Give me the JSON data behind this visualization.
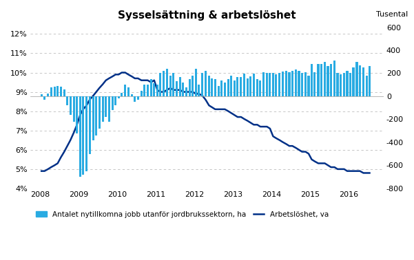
{
  "title": "Sysselsättning & arbetslöshet",
  "right_axis_label": "Tusental",
  "legend_bar": "Antalet nytillkomna jobb utanför jordbrukssektorn, ha",
  "legend_line": "Arbetslöshet, va",
  "bar_color": "#29ABE2",
  "line_color": "#003087",
  "background_color": "#FFFFFF",
  "left_ylim": [
    0.04,
    0.125
  ],
  "left_yticks": [
    0.04,
    0.05,
    0.06,
    0.07,
    0.08,
    0.09,
    0.1,
    0.11,
    0.12
  ],
  "left_yticklabels": [
    "4%",
    "5%",
    "6%",
    "7%",
    "8%",
    "9%",
    "10%",
    "11%",
    "12%"
  ],
  "right_ylim": [
    -800,
    625
  ],
  "right_yticks": [
    -800,
    -600,
    -400,
    -200,
    0,
    200,
    400,
    600
  ],
  "xlim_start": 2007.75,
  "xlim_end": 2016.9,
  "xticks": [
    2008,
    2009,
    2010,
    2011,
    2012,
    2013,
    2014,
    2015,
    2016
  ],
  "bar_dates": [
    2008.04,
    2008.12,
    2008.21,
    2008.29,
    2008.38,
    2008.46,
    2008.54,
    2008.63,
    2008.71,
    2008.79,
    2008.88,
    2008.96,
    2009.04,
    2009.12,
    2009.21,
    2009.29,
    2009.38,
    2009.46,
    2009.54,
    2009.63,
    2009.71,
    2009.79,
    2009.88,
    2009.96,
    2010.04,
    2010.12,
    2010.21,
    2010.29,
    2010.38,
    2010.46,
    2010.54,
    2010.63,
    2010.71,
    2010.79,
    2010.88,
    2010.96,
    2011.04,
    2011.12,
    2011.21,
    2011.29,
    2011.38,
    2011.46,
    2011.54,
    2011.63,
    2011.71,
    2011.79,
    2011.88,
    2011.96,
    2012.04,
    2012.12,
    2012.21,
    2012.29,
    2012.38,
    2012.46,
    2012.54,
    2012.63,
    2012.71,
    2012.79,
    2012.88,
    2012.96,
    2013.04,
    2013.12,
    2013.21,
    2013.29,
    2013.38,
    2013.46,
    2013.54,
    2013.63,
    2013.71,
    2013.79,
    2013.88,
    2013.96,
    2014.04,
    2014.12,
    2014.21,
    2014.29,
    2014.38,
    2014.46,
    2014.54,
    2014.63,
    2014.71,
    2014.79,
    2014.88,
    2014.96,
    2015.04,
    2015.12,
    2015.21,
    2015.29,
    2015.38,
    2015.46,
    2015.54,
    2015.63,
    2015.71,
    2015.79,
    2015.88,
    2015.96,
    2016.04,
    2016.12,
    2016.21,
    2016.29,
    2016.38,
    2016.46,
    2016.54
  ],
  "bar_values": [
    18,
    -30,
    25,
    75,
    85,
    90,
    85,
    60,
    -75,
    -160,
    -220,
    -320,
    -700,
    -680,
    -650,
    -500,
    -380,
    -340,
    -280,
    -220,
    -180,
    -220,
    -120,
    -80,
    -20,
    30,
    100,
    80,
    20,
    -50,
    -30,
    50,
    100,
    100,
    150,
    115,
    100,
    200,
    220,
    240,
    180,
    200,
    130,
    170,
    120,
    80,
    150,
    180,
    240,
    100,
    200,
    220,
    180,
    155,
    150,
    90,
    140,
    120,
    150,
    180,
    140,
    170,
    165,
    195,
    155,
    175,
    195,
    150,
    140,
    210,
    200,
    200,
    200,
    190,
    200,
    215,
    220,
    210,
    220,
    230,
    220,
    200,
    210,
    180,
    280,
    210,
    280,
    280,
    300,
    260,
    280,
    310,
    200,
    190,
    200,
    220,
    200,
    250,
    300,
    270,
    250,
    180,
    260
  ],
  "line_dates": [
    2008.04,
    2008.12,
    2008.21,
    2008.29,
    2008.38,
    2008.46,
    2008.54,
    2008.63,
    2008.71,
    2008.79,
    2008.88,
    2008.96,
    2009.04,
    2009.12,
    2009.21,
    2009.29,
    2009.38,
    2009.46,
    2009.54,
    2009.63,
    2009.71,
    2009.79,
    2009.88,
    2009.96,
    2010.04,
    2010.12,
    2010.21,
    2010.29,
    2010.38,
    2010.46,
    2010.54,
    2010.63,
    2010.71,
    2010.79,
    2010.88,
    2010.96,
    2011.04,
    2011.12,
    2011.21,
    2011.29,
    2011.38,
    2011.46,
    2011.54,
    2011.63,
    2011.71,
    2011.79,
    2011.88,
    2011.96,
    2012.04,
    2012.12,
    2012.21,
    2012.29,
    2012.38,
    2012.46,
    2012.54,
    2012.63,
    2012.71,
    2012.79,
    2012.88,
    2012.96,
    2013.04,
    2013.12,
    2013.21,
    2013.29,
    2013.38,
    2013.46,
    2013.54,
    2013.63,
    2013.71,
    2013.79,
    2013.88,
    2013.96,
    2014.04,
    2014.12,
    2014.21,
    2014.29,
    2014.38,
    2014.46,
    2014.54,
    2014.63,
    2014.71,
    2014.79,
    2014.88,
    2014.96,
    2015.04,
    2015.12,
    2015.21,
    2015.29,
    2015.38,
    2015.46,
    2015.54,
    2015.63,
    2015.71,
    2015.79,
    2015.88,
    2015.96,
    2016.04,
    2016.12,
    2016.21,
    2016.29,
    2016.38,
    2016.46,
    2016.54
  ],
  "line_values": [
    0.049,
    0.049,
    0.05,
    0.051,
    0.052,
    0.053,
    0.056,
    0.059,
    0.062,
    0.065,
    0.069,
    0.073,
    0.078,
    0.081,
    0.083,
    0.086,
    0.088,
    0.09,
    0.092,
    0.094,
    0.096,
    0.097,
    0.098,
    0.099,
    0.099,
    0.1,
    0.1,
    0.099,
    0.098,
    0.097,
    0.097,
    0.096,
    0.096,
    0.096,
    0.095,
    0.096,
    0.091,
    0.09,
    0.09,
    0.091,
    0.092,
    0.091,
    0.091,
    0.091,
    0.09,
    0.09,
    0.09,
    0.09,
    0.089,
    0.089,
    0.088,
    0.086,
    0.083,
    0.082,
    0.081,
    0.081,
    0.081,
    0.081,
    0.08,
    0.079,
    0.078,
    0.077,
    0.077,
    0.076,
    0.075,
    0.074,
    0.073,
    0.073,
    0.072,
    0.072,
    0.072,
    0.071,
    0.067,
    0.066,
    0.065,
    0.064,
    0.063,
    0.062,
    0.062,
    0.061,
    0.06,
    0.059,
    0.059,
    0.058,
    0.055,
    0.054,
    0.053,
    0.053,
    0.053,
    0.052,
    0.051,
    0.051,
    0.05,
    0.05,
    0.05,
    0.049,
    0.049,
    0.049,
    0.049,
    0.049,
    0.048,
    0.048,
    0.048
  ]
}
